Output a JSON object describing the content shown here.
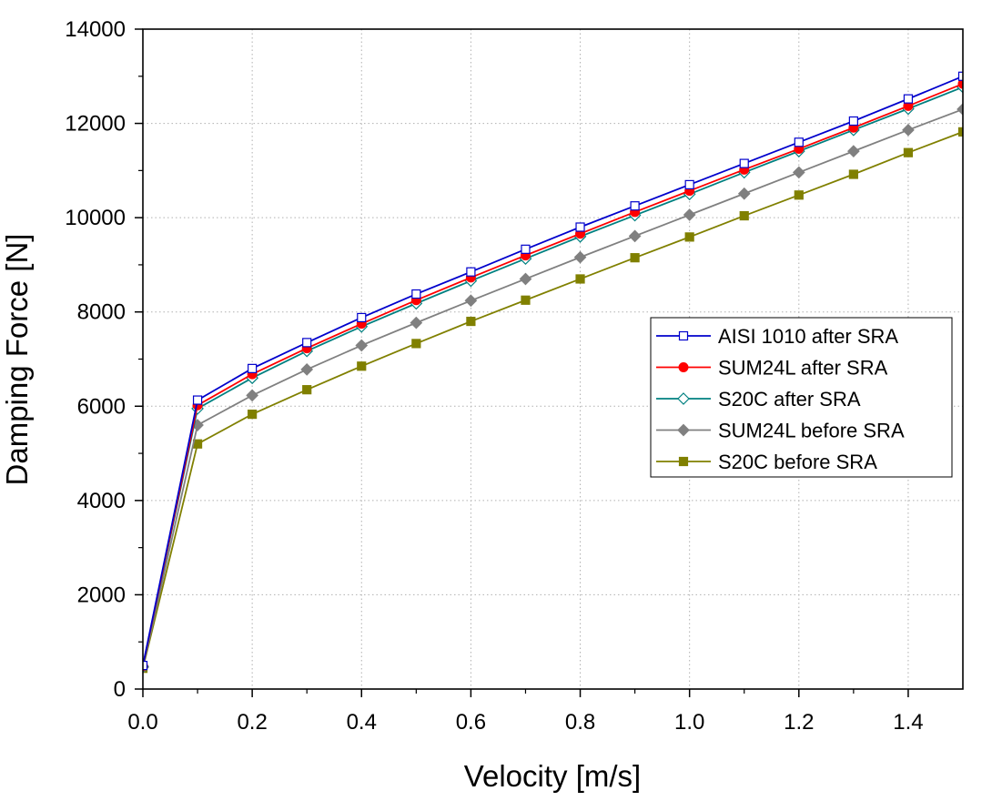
{
  "chart_data": {
    "type": "line",
    "title": "",
    "xlabel": "Velocity [m/s]",
    "ylabel": "Damping Force [N]",
    "xlim": [
      0,
      1.5
    ],
    "ylim": [
      0,
      14000
    ],
    "xticks": [
      "0.0",
      "0.2",
      "0.4",
      "0.6",
      "0.8",
      "1.0",
      "1.2",
      "1.4"
    ],
    "xtick_values": [
      0,
      0.2,
      0.4,
      0.6,
      0.8,
      1.0,
      1.2,
      1.4
    ],
    "yticks": [
      "0",
      "2000",
      "4000",
      "6000",
      "8000",
      "10000",
      "12000",
      "14000"
    ],
    "ytick_values": [
      0,
      2000,
      4000,
      6000,
      8000,
      10000,
      12000,
      14000
    ],
    "grid": true,
    "legend_position": "right",
    "x": [
      0,
      0.1,
      0.2,
      0.3,
      0.4,
      0.5,
      0.6,
      0.7,
      0.8,
      0.9,
      1.0,
      1.1,
      1.2,
      1.3,
      1.4,
      1.5
    ],
    "series": [
      {
        "name": "AISI 1010 after SRA",
        "color": "#0000cc",
        "fill": "#ffffff",
        "marker": "square-open",
        "values": [
          500,
          6130,
          6800,
          7350,
          7880,
          8380,
          8850,
          9330,
          9800,
          10250,
          10700,
          11150,
          11600,
          12050,
          12520,
          13000
        ]
      },
      {
        "name": "SUM24L after SRA",
        "color": "#ff0000",
        "fill": "#ff0000",
        "marker": "circle",
        "values": [
          490,
          6020,
          6680,
          7230,
          7750,
          8250,
          8730,
          9200,
          9660,
          10120,
          10570,
          11020,
          11460,
          11910,
          12370,
          12840
        ]
      },
      {
        "name": "S20C after SRA",
        "color": "#008080",
        "fill": "#ffffff",
        "marker": "diamond-open",
        "values": [
          480,
          5950,
          6600,
          7170,
          7690,
          8180,
          8660,
          9130,
          9600,
          10050,
          10500,
          10960,
          11410,
          11860,
          12310,
          12770
        ]
      },
      {
        "name": "SUM24L before SRA",
        "color": "#808080",
        "fill": "#808080",
        "marker": "diamond",
        "values": [
          460,
          5600,
          6230,
          6780,
          7290,
          7770,
          8240,
          8700,
          9160,
          9610,
          10060,
          10510,
          10960,
          11410,
          11860,
          12300
        ]
      },
      {
        "name": "S20C before SRA",
        "color": "#808000",
        "fill": "#808000",
        "marker": "square",
        "values": [
          440,
          5200,
          5830,
          6350,
          6850,
          7330,
          7800,
          8250,
          8700,
          9150,
          9590,
          10040,
          10480,
          10920,
          11380,
          11820
        ]
      }
    ]
  }
}
